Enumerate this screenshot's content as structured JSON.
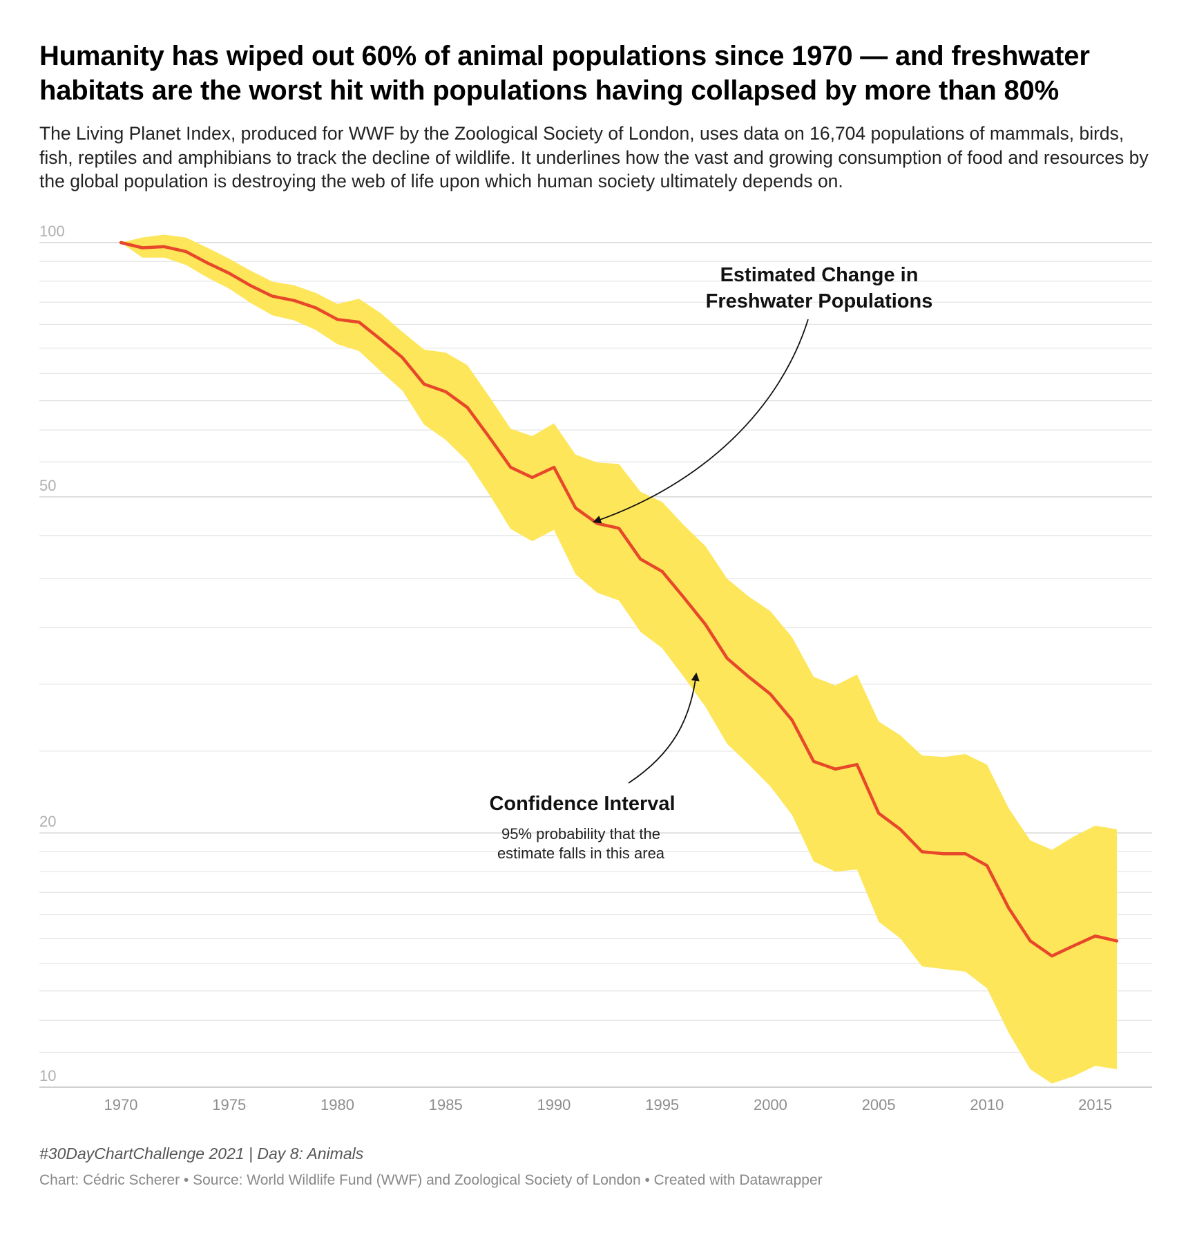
{
  "header": {
    "title": "Humanity has wiped out 60% of animal populations since 1970 — and freshwater habitats are the worst hit with populations having collapsed by more than 80%",
    "subtitle": "The Living Planet Index, produced for WWF by the Zoological Society of London, uses data on 16,704 populations of mammals, birds, fish, reptiles and amphibians to track the decline of wildlife. It underlines how the vast and growing consumption of food and resources by the global population is destroying the web of life upon which human society ultimately depends on."
  },
  "footer": {
    "note": "#30DayChartChallenge 2021 | Day 8: Animals",
    "credit": "Chart: Cédric Scherer • Source: World Wildlife Fund (WWF) and Zoological Society of London • Created with Datawrapper"
  },
  "annotations": {
    "estimate_line1": "Estimated Change in",
    "estimate_line2": "Freshwater Populations",
    "ci_title": "Confidence Interval",
    "ci_line1": "95% probability that the",
    "ci_line2": "estimate falls in this area"
  },
  "colors": {
    "line": "#e8482a",
    "band": "#fde65a",
    "grid": "#e4e4e4"
  },
  "chart_data": {
    "type": "area",
    "y_scale": "log",
    "ylim": [
      10,
      100
    ],
    "xlim": [
      1967,
      2017
    ],
    "x_ticks": [
      1970,
      1975,
      1980,
      1985,
      1990,
      1995,
      2000,
      2005,
      2010,
      2015
    ],
    "y_ticks": [
      100,
      50,
      20,
      10
    ],
    "y_tick_labels": [
      "100",
      "50",
      "20",
      "10"
    ],
    "grid": true,
    "x": [
      1970,
      1971,
      1972,
      1973,
      1974,
      1975,
      1976,
      1977,
      1978,
      1979,
      1980,
      1981,
      1982,
      1983,
      1984,
      1985,
      1986,
      1987,
      1988,
      1989,
      1990,
      1991,
      1992,
      1993,
      1994,
      1995,
      1996,
      1997,
      1998,
      1999,
      2000,
      2001,
      2002,
      2003,
      2004,
      2005,
      2006,
      2007,
      2008,
      2009,
      2010,
      2011,
      2012,
      2013,
      2014,
      2015,
      2016
    ],
    "series": [
      {
        "role": "estimate",
        "values": [
          100,
          98.6,
          98.9,
          97.6,
          94.6,
          92.0,
          88.9,
          86.4,
          85.4,
          83.7,
          81.1,
          80.5,
          76.8,
          73.1,
          68.0,
          66.6,
          63.8,
          58.9,
          54.2,
          52.7,
          54.2,
          48.5,
          46.5,
          45.9,
          42.2,
          40.8,
          38.0,
          35.3,
          32.2,
          30.6,
          29.2,
          27.2,
          24.3,
          23.8,
          24.1,
          21.1,
          20.2,
          19.0,
          18.9,
          18.9,
          18.3,
          16.3,
          14.9,
          14.3,
          14.7,
          15.1,
          14.9
        ]
      },
      {
        "role": "ci_upper",
        "values": [
          100,
          101.4,
          102.2,
          101.4,
          98.6,
          95.7,
          92.6,
          89.9,
          89.0,
          87.2,
          84.6,
          85.8,
          82.5,
          78.4,
          74.7,
          74.1,
          71.6,
          65.8,
          60.2,
          59.0,
          61.1,
          56.1,
          54.9,
          54.7,
          50.7,
          49.3,
          46.3,
          43.7,
          40.0,
          38.1,
          36.6,
          34.1,
          30.6,
          29.9,
          30.8,
          27.1,
          26.1,
          24.7,
          24.6,
          24.8,
          24.1,
          21.4,
          19.6,
          19.1,
          19.8,
          20.4,
          20.2
        ]
      },
      {
        "role": "ci_lower",
        "values": [
          100,
          96.0,
          96.0,
          94.1,
          90.9,
          88.2,
          84.8,
          82.0,
          80.9,
          78.8,
          75.8,
          74.4,
          70.4,
          66.8,
          60.9,
          58.4,
          55.1,
          50.4,
          45.8,
          44.3,
          45.7,
          40.5,
          38.5,
          37.7,
          34.6,
          33.1,
          30.6,
          28.2,
          25.5,
          24.1,
          22.7,
          21.0,
          18.5,
          18.0,
          18.1,
          15.7,
          15.0,
          13.9,
          13.8,
          13.7,
          13.1,
          11.6,
          10.5,
          10.1,
          10.3,
          10.6,
          10.5
        ]
      }
    ]
  }
}
